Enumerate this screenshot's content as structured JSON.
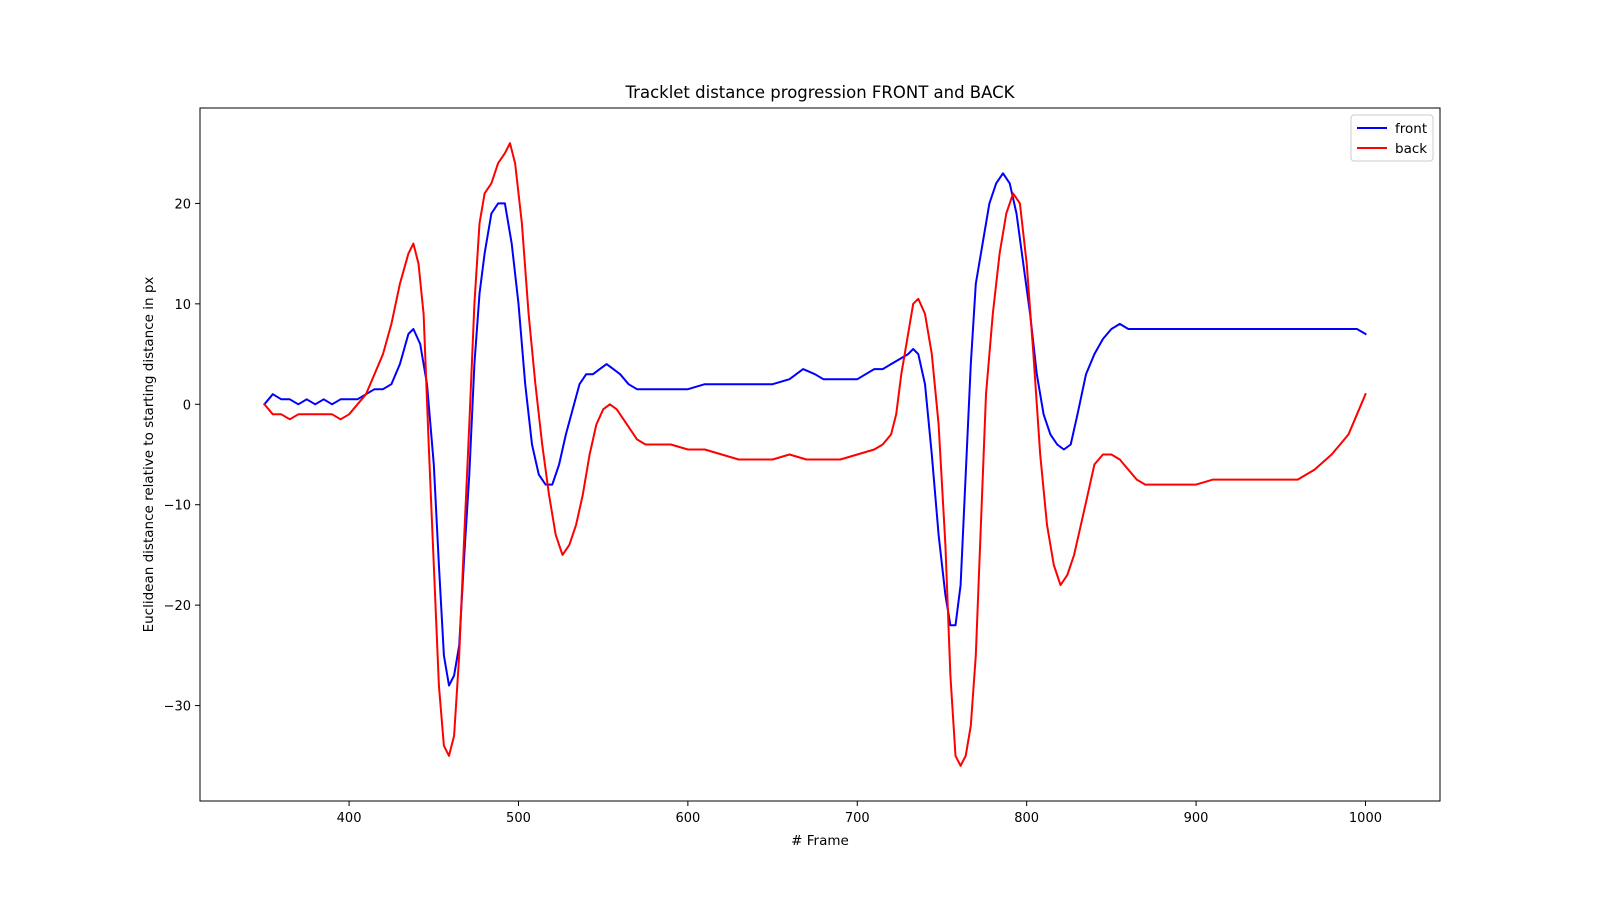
{
  "chart_data": {
    "type": "line",
    "title": "Tracklet distance progression FRONT and BACK",
    "xlabel": "# Frame",
    "ylabel": "Euclidean distance relative to starting distance in px",
    "xlim": [
      312,
      1044
    ],
    "ylim": [
      -39.5,
      29.5
    ],
    "xticks": [
      400,
      500,
      600,
      700,
      800,
      900,
      1000
    ],
    "yticks": [
      -30,
      -20,
      -10,
      0,
      10,
      20
    ],
    "ytick_labels": [
      "−30",
      "−20",
      "−10",
      "0",
      "10",
      "20"
    ],
    "grid": false,
    "legend_position": "top-right",
    "series": [
      {
        "name": "front",
        "color": "#0000ff",
        "x": [
          350,
          355,
          360,
          365,
          370,
          375,
          380,
          385,
          390,
          395,
          400,
          405,
          410,
          415,
          420,
          425,
          430,
          435,
          438,
          442,
          446,
          450,
          453,
          456,
          459,
          462,
          465,
          468,
          471,
          474,
          477,
          480,
          484,
          488,
          492,
          496,
          500,
          504,
          508,
          512,
          516,
          520,
          524,
          528,
          532,
          536,
          540,
          544,
          548,
          552,
          556,
          560,
          565,
          570,
          575,
          580,
          590,
          600,
          610,
          620,
          630,
          640,
          650,
          660,
          668,
          675,
          680,
          690,
          700,
          705,
          710,
          715,
          720,
          725,
          730,
          733,
          736,
          740,
          744,
          748,
          752,
          755,
          758,
          761,
          764,
          767,
          770,
          774,
          778,
          782,
          786,
          790,
          794,
          798,
          802,
          806,
          810,
          814,
          818,
          822,
          826,
          830,
          835,
          840,
          845,
          850,
          855,
          860,
          870,
          880,
          890,
          900,
          910,
          920,
          930,
          940,
          950,
          960,
          970,
          980,
          990,
          995,
          1000
        ],
        "y": [
          0,
          1,
          0.5,
          0.5,
          0,
          0.5,
          0,
          0.5,
          0,
          0.5,
          0.5,
          0.5,
          1,
          1.5,
          1.5,
          2,
          4,
          7,
          7.5,
          6,
          2,
          -6,
          -16,
          -25,
          -28,
          -27,
          -24,
          -15,
          -7,
          4,
          11,
          15,
          19,
          20,
          20,
          16,
          10,
          2,
          -4,
          -7,
          -8,
          -8,
          -6,
          -3,
          -0.5,
          2,
          3,
          3,
          3.5,
          4,
          3.5,
          3,
          2,
          1.5,
          1.5,
          1.5,
          1.5,
          1.5,
          2,
          2,
          2,
          2,
          2,
          2.5,
          3.5,
          3,
          2.5,
          2.5,
          2.5,
          3,
          3.5,
          3.5,
          4,
          4.5,
          5,
          5.5,
          5,
          2,
          -5,
          -13,
          -19,
          -22,
          -22,
          -18,
          -7,
          4,
          12,
          16,
          20,
          22,
          23,
          22,
          19,
          14,
          9,
          3,
          -1,
          -3,
          -4,
          -4.5,
          -4,
          -1,
          3,
          5,
          6.5,
          7.5,
          8,
          7.5,
          7.5,
          7.5,
          7.5,
          7.5,
          7.5,
          7.5,
          7.5,
          7.5,
          7.5,
          7.5,
          7.5,
          7.5,
          7.5,
          7.5,
          7
        ]
      },
      {
        "name": "back",
        "color": "#ff0000",
        "x": [
          350,
          355,
          360,
          365,
          370,
          375,
          380,
          385,
          390,
          395,
          400,
          405,
          410,
          415,
          420,
          425,
          430,
          435,
          438,
          441,
          444,
          447,
          450,
          453,
          456,
          459,
          462,
          465,
          468,
          471,
          474,
          477,
          480,
          484,
          488,
          492,
          495,
          498,
          502,
          506,
          510,
          514,
          518,
          522,
          526,
          530,
          534,
          538,
          542,
          546,
          550,
          554,
          558,
          562,
          566,
          570,
          575,
          580,
          590,
          600,
          610,
          620,
          630,
          640,
          650,
          660,
          670,
          680,
          690,
          700,
          710,
          715,
          720,
          723,
          726,
          730,
          733,
          736,
          740,
          744,
          748,
          752,
          755,
          758,
          761,
          764,
          767,
          770,
          773,
          776,
          780,
          784,
          788,
          792,
          796,
          800,
          804,
          808,
          812,
          816,
          820,
          824,
          828,
          832,
          836,
          840,
          845,
          850,
          855,
          860,
          865,
          870,
          880,
          890,
          900,
          910,
          920,
          930,
          940,
          950,
          960,
          970,
          980,
          985,
          990,
          995,
          1000
        ],
        "y": [
          0,
          -1,
          -1,
          -1.5,
          -1,
          -1,
          -1,
          -1,
          -1,
          -1.5,
          -1,
          0,
          1,
          3,
          5,
          8,
          12,
          15,
          16,
          14,
          9,
          -4,
          -16,
          -28,
          -34,
          -35,
          -33,
          -25,
          -13,
          -2,
          10,
          18,
          21,
          22,
          24,
          25,
          26,
          24,
          18,
          9,
          2,
          -4,
          -9,
          -13,
          -15,
          -14,
          -12,
          -9,
          -5,
          -2,
          -0.5,
          0,
          -0.5,
          -1.5,
          -2.5,
          -3.5,
          -4,
          -4,
          -4,
          -4.5,
          -4.5,
          -5,
          -5.5,
          -5.5,
          -5.5,
          -5,
          -5.5,
          -5.5,
          -5.5,
          -5,
          -4.5,
          -4,
          -3,
          -1,
          3,
          7,
          10,
          10.5,
          9,
          5,
          -2,
          -14,
          -27,
          -35,
          -36,
          -35,
          -32,
          -25,
          -12,
          1,
          9,
          15,
          19,
          21,
          20,
          14,
          5,
          -5,
          -12,
          -16,
          -18,
          -17,
          -15,
          -12,
          -9,
          -6,
          -5,
          -5,
          -5.5,
          -6.5,
          -7.5,
          -8,
          -8,
          -8,
          -8,
          -7.5,
          -7.5,
          -7.5,
          -7.5,
          -7.5,
          -7.5,
          -6.5,
          -5,
          -4,
          -3,
          -1,
          1
        ]
      }
    ]
  }
}
